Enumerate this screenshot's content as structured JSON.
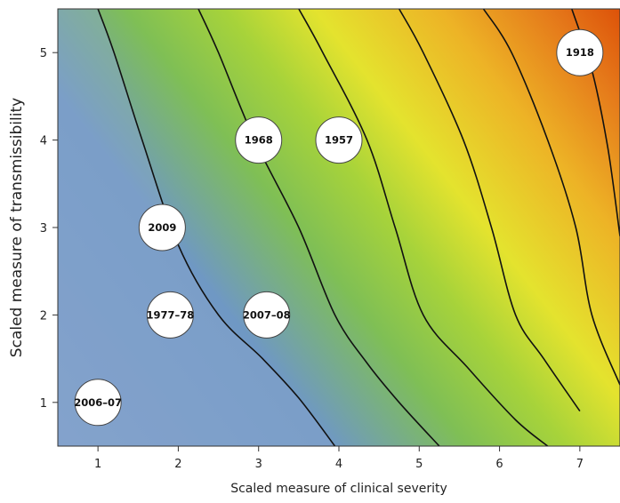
{
  "chart_data": {
    "type": "scatter",
    "xlabel": "Scaled measure of clinical severity",
    "ylabel": "Scaled measure of transmissibility",
    "xlim": [
      0.5,
      7.5
    ],
    "ylim": [
      0.5,
      5.5
    ],
    "x_ticks": [
      1,
      2,
      3,
      4,
      5,
      6,
      7
    ],
    "y_ticks": [
      1,
      2,
      3,
      4,
      5
    ],
    "grid": false,
    "legend": "none",
    "background": "filled contour gradient from blue (low) through green and yellow to orange-red (high severity × transmissibility)",
    "colors": [
      "#7f9fca",
      "#5f8fca",
      "#86c64a",
      "#e6e32b",
      "#eda320",
      "#df5409"
    ],
    "points": [
      {
        "label": "2006–07",
        "x": 1.0,
        "y": 1.0
      },
      {
        "label": "1977–78",
        "x": 1.9,
        "y": 2.0
      },
      {
        "label": "2007–08",
        "x": 3.1,
        "y": 2.0
      },
      {
        "label": "2009",
        "x": 1.8,
        "y": 3.0
      },
      {
        "label": "1968",
        "x": 3.0,
        "y": 4.0
      },
      {
        "label": "1957",
        "x": 4.0,
        "y": 4.0
      },
      {
        "label": "1918",
        "x": 7.0,
        "y": 5.0
      }
    ],
    "contours": [
      {
        "level": 1,
        "points": [
          [
            1.0,
            5.5
          ],
          [
            1.2,
            5.0
          ],
          [
            1.55,
            4.0
          ],
          [
            2.0,
            2.8
          ],
          [
            2.5,
            2.0
          ],
          [
            3.05,
            1.5
          ],
          [
            3.5,
            1.05
          ],
          [
            3.95,
            0.5
          ]
        ]
      },
      {
        "level": 2,
        "points": [
          [
            2.25,
            5.5
          ],
          [
            2.5,
            5.0
          ],
          [
            2.95,
            4.0
          ],
          [
            3.5,
            3.0
          ],
          [
            3.95,
            2.0
          ],
          [
            4.35,
            1.45
          ],
          [
            4.75,
            1.0
          ],
          [
            5.25,
            0.5
          ]
        ]
      },
      {
        "level": 3,
        "points": [
          [
            3.5,
            5.5
          ],
          [
            3.8,
            5.0
          ],
          [
            4.35,
            4.0
          ],
          [
            4.7,
            3.0
          ],
          [
            5.05,
            2.0
          ],
          [
            5.6,
            1.4
          ],
          [
            6.2,
            0.8
          ],
          [
            6.6,
            0.5
          ]
        ]
      },
      {
        "level": 4,
        "points": [
          [
            4.75,
            5.5
          ],
          [
            5.05,
            5.0
          ],
          [
            5.55,
            4.0
          ],
          [
            5.9,
            3.0
          ],
          [
            6.2,
            2.0
          ],
          [
            6.55,
            1.5
          ],
          [
            7.0,
            0.9
          ]
        ]
      },
      {
        "level": 5,
        "points": [
          [
            5.8,
            5.5
          ],
          [
            6.15,
            5.0
          ],
          [
            6.6,
            4.0
          ],
          [
            6.95,
            3.0
          ],
          [
            7.15,
            2.0
          ],
          [
            7.5,
            1.2
          ]
        ]
      },
      {
        "level": 6,
        "points": [
          [
            6.9,
            5.5
          ],
          [
            7.15,
            4.8
          ],
          [
            7.35,
            3.9
          ],
          [
            7.5,
            2.9
          ]
        ]
      }
    ]
  }
}
